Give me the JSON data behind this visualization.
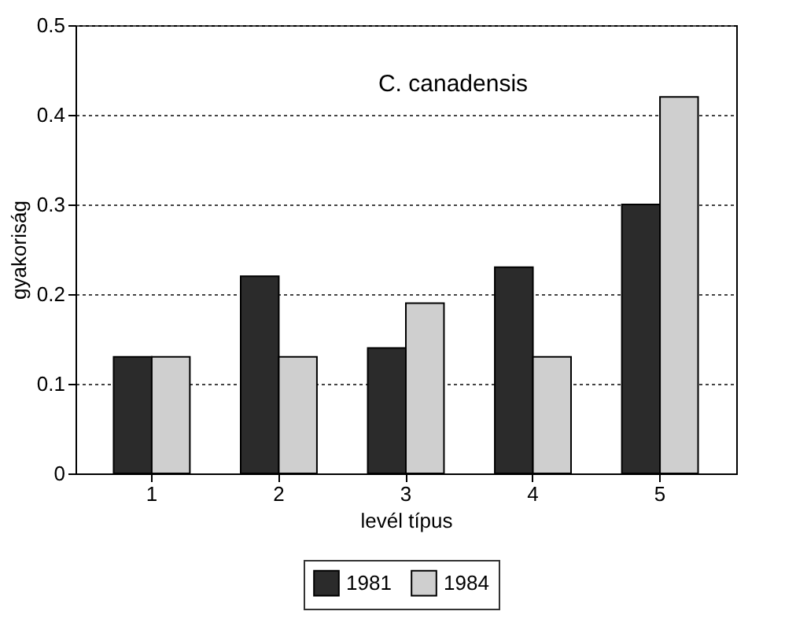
{
  "chart_data": {
    "type": "bar",
    "title": "C. canadensis",
    "xlabel": "levél típus",
    "ylabel": "gyakoriság",
    "categories": [
      "1",
      "2",
      "3",
      "4",
      "5"
    ],
    "series": [
      {
        "name": "1981",
        "color": "#2b2b2b",
        "values": [
          0.13,
          0.22,
          0.14,
          0.23,
          0.3
        ]
      },
      {
        "name": "1984",
        "color": "#cfcfcf",
        "values": [
          0.13,
          0.13,
          0.19,
          0.13,
          0.42
        ]
      }
    ],
    "ylim": [
      0,
      0.5
    ],
    "yticks": [
      0,
      0.1,
      0.2,
      0.3,
      0.4,
      0.5
    ],
    "grid": "y",
    "legend": "bottom"
  }
}
